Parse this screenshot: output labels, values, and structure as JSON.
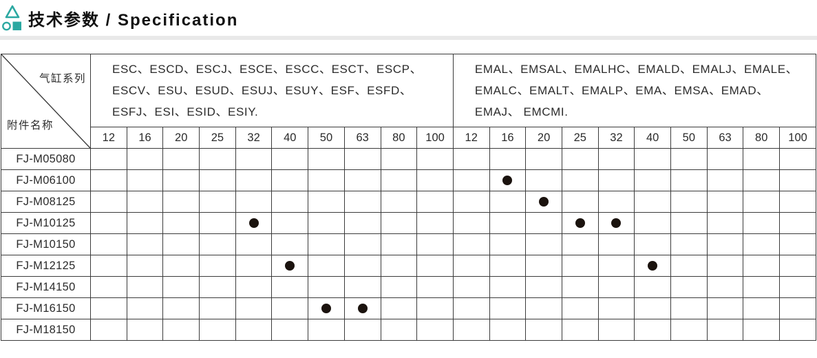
{
  "header": {
    "title": "技术参数 / Specification",
    "accent_color": "#2BA8A1",
    "logo_icon": "triangle-circle-square-mark"
  },
  "divider_strip_color": "#e9e9e9",
  "table": {
    "corner": {
      "series_label": "气缸系列",
      "accessory_label": "附件名称"
    },
    "bore_sizes": [
      "12",
      "16",
      "20",
      "25",
      "32",
      "40",
      "50",
      "63",
      "80",
      "100"
    ],
    "groups": [
      {
        "name": "ESC-series",
        "series_text": "ESC、ESCD、ESCJ、ESCE、ESCC、ESCT、ESCP、 ESCV、ESU、ESUD、ESUJ、ESUY、ESF、ESFD、 ESFJ、ESI、ESID、ESIY."
      },
      {
        "name": "EMAL-series",
        "series_text": "EMAL、EMSAL、EMALHC、EMALD、EMALJ、EMALE、 EMALC、EMALT、EMALP、EMA、EMSA、EMAD、EMAJ、 EMCMI."
      }
    ],
    "mark_symbol": "filled-dot",
    "colors": {
      "border": "#3a3a3a",
      "text": "#2b2b2b",
      "dot": "#1b130e"
    },
    "rows": [
      {
        "label": "FJ-M05080",
        "marks": {
          "group1": [],
          "group2": []
        }
      },
      {
        "label": "FJ-M06100",
        "marks": {
          "group1": [],
          "group2": [
            "16"
          ]
        }
      },
      {
        "label": "FJ-M08125",
        "marks": {
          "group1": [],
          "group2": [
            "20"
          ]
        }
      },
      {
        "label": "FJ-M10125",
        "marks": {
          "group1": [
            "32"
          ],
          "group2": [
            "25",
            "32"
          ]
        }
      },
      {
        "label": "FJ-M10150",
        "marks": {
          "group1": [],
          "group2": []
        }
      },
      {
        "label": "FJ-M12125",
        "marks": {
          "group1": [
            "40"
          ],
          "group2": [
            "40"
          ]
        }
      },
      {
        "label": "FJ-M14150",
        "marks": {
          "group1": [],
          "group2": []
        }
      },
      {
        "label": "FJ-M16150",
        "marks": {
          "group1": [
            "50",
            "63"
          ],
          "group2": []
        }
      },
      {
        "label": "FJ-M18150",
        "marks": {
          "group1": [],
          "group2": []
        }
      }
    ]
  }
}
